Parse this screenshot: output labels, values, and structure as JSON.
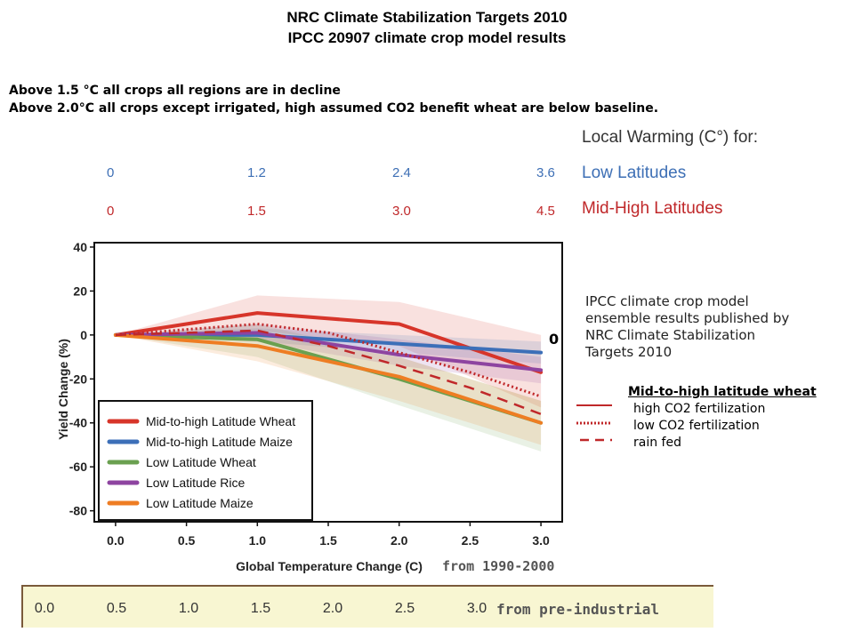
{
  "titles": {
    "line1": "NRC Climate Stabilization Targets 2010",
    "line2": "IPCC 20907 climate crop model results"
  },
  "notes": {
    "line1": "Above 1.5 °C all crops all regions are in decline",
    "line2": "Above 2.0°C all crops except irrigated, high assumed CO2 benefit wheat are below baseline."
  },
  "local_warming": {
    "title": "Local Warming (C°) for:",
    "low_latitudes": {
      "name": "Low Latitudes",
      "values": [
        "0",
        "1.2",
        "2.4",
        "3.6"
      ],
      "color": "#3d6fb5"
    },
    "mid_high_latitudes": {
      "name": "Mid-High Latitudes",
      "values": [
        "0",
        "1.5",
        "3.0",
        "4.5"
      ],
      "color": "#c0282a"
    }
  },
  "side_note": {
    "lines": [
      "IPCC climate  crop model",
      "ensemble results published by",
      "NRC  Climate Stabilization",
      "Targets 2010"
    ],
    "zero_mark": "0"
  },
  "mid_high_wheat_legend": {
    "title": "Mid-to-high latitude  wheat",
    "items": [
      {
        "label": "high CO2 fertilization",
        "style": "solid"
      },
      {
        "label": "low CO2 fertilization",
        "style": "dotted"
      },
      {
        "label": "rain fed",
        "style": "dashed"
      }
    ],
    "color": "#c0282a"
  },
  "baseline_notes": {
    "from_1990": "from 1990-2000",
    "from_preindustrial": "from pre-industrial",
    "preindustrial_ticks": [
      "0.0",
      "0.5",
      "1.0",
      "1.5",
      "2.0",
      "2.5",
      "3.0"
    ]
  },
  "chart_data": {
    "type": "line",
    "xlabel": "Global Temperature Change (C)",
    "ylabel": "Yield Change (%)",
    "xlim": [
      -0.15,
      3.15
    ],
    "ylim": [
      -85,
      42
    ],
    "xticks": [
      "0.0",
      "0.5",
      "1.0",
      "1.5",
      "2.0",
      "2.5",
      "3.0"
    ],
    "yticks": [
      "40",
      "20",
      "0",
      "-20",
      "-40",
      "-60",
      "-80"
    ],
    "x": [
      0,
      1,
      2,
      3
    ],
    "series": [
      {
        "name": "Mid-to-high Latitude Wheat",
        "color": "#d7352a",
        "values": [
          0,
          10,
          5,
          -17
        ],
        "band_upper": [
          0,
          18,
          15,
          0
        ],
        "band_lower": [
          0,
          2,
          -5,
          -33
        ]
      },
      {
        "name": "Mid-to-high Latitude Maize",
        "color": "#3c6fb8",
        "values": [
          0,
          0,
          -4,
          -8
        ],
        "band_upper": [
          0,
          3,
          0,
          -3
        ],
        "band_lower": [
          0,
          -3,
          -8,
          -13
        ]
      },
      {
        "name": "Low Latitude Wheat",
        "color": "#6aa050",
        "values": [
          0,
          -2,
          -20,
          -40
        ],
        "band_upper": [
          0,
          5,
          -10,
          -30
        ],
        "band_lower": [
          0,
          -10,
          -32,
          -53
        ]
      },
      {
        "name": "Low Latitude Rice",
        "color": "#8e44a0",
        "values": [
          0,
          1,
          -9,
          -16
        ],
        "band_upper": [
          0,
          5,
          -2,
          -10
        ],
        "band_lower": [
          0,
          -3,
          -14,
          -22
        ]
      },
      {
        "name": "Low Latitude Maize",
        "color": "#ee7d23",
        "values": [
          0,
          -5,
          -19,
          -40
        ],
        "band_upper": [
          0,
          0,
          -10,
          -30
        ],
        "band_lower": [
          0,
          -12,
          -30,
          -50
        ]
      }
    ],
    "overlays": [
      {
        "style": "dotted",
        "color": "#c0282a",
        "x": [
          0,
          1,
          1.5,
          2,
          2.5,
          3
        ],
        "values": [
          0,
          5,
          1,
          -8,
          -17,
          -28
        ]
      },
      {
        "style": "dashed",
        "color": "#c0282a",
        "x": [
          0,
          1,
          1.5,
          2,
          2.5,
          3
        ],
        "values": [
          0,
          2,
          -5,
          -14,
          -24,
          -36
        ]
      }
    ],
    "legend_position": "bottom-left",
    "grid": false
  }
}
